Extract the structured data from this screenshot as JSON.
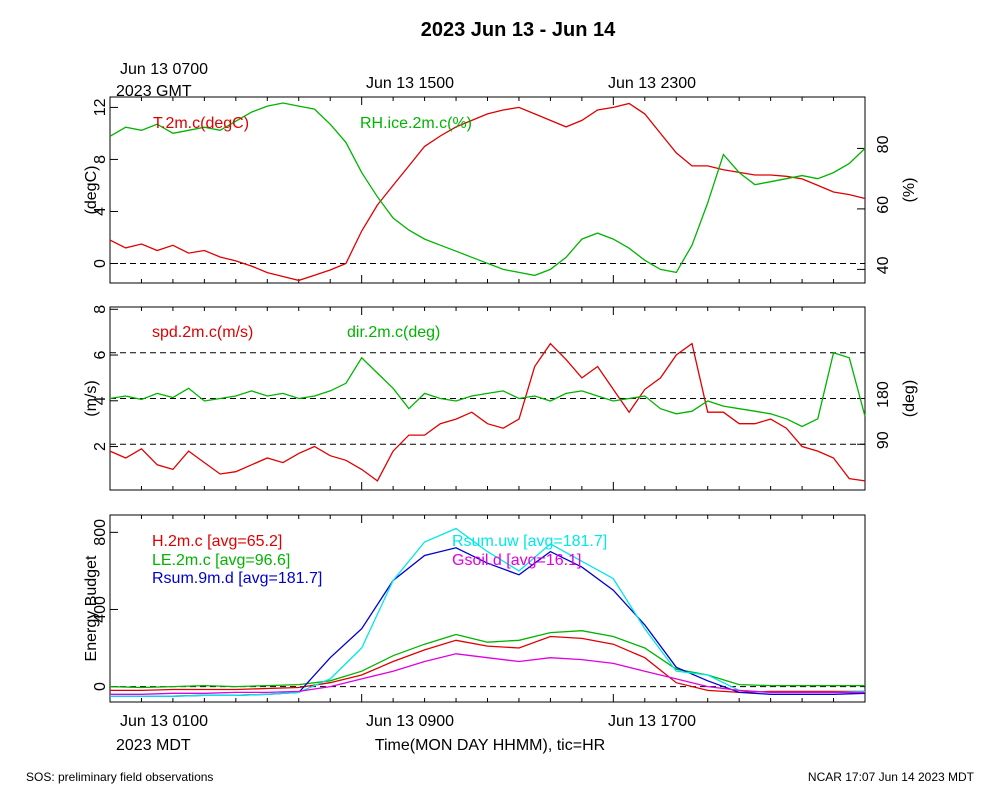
{
  "title": "2023 Jun 13 - Jun 14",
  "colors": {
    "red": "#e00000",
    "green": "#00b400",
    "blue": "#0000d0",
    "cyan": "#00e8e8",
    "magenta": "#e000e0",
    "black": "#000000"
  },
  "top_axis": {
    "first_label": [
      "Jun 13 0700",
      "2023 GMT"
    ],
    "labels": [
      "Jun 13 1500",
      "Jun 13 2300"
    ]
  },
  "bottom_axis": {
    "first_label": [
      "Jun 13 0100",
      "2023 MDT"
    ],
    "labels": [
      "Jun 13 0900",
      "Jun 13 1700"
    ],
    "title": "Time(MON DAY HHMM), tic=HR"
  },
  "footer": {
    "left": "SOS: preliminary field observations",
    "right": "NCAR 17:07 Jun 14 2023 MDT"
  },
  "chart_data": [
    {
      "type": "line",
      "x_range_hours": [
        0,
        24
      ],
      "left_axis": {
        "label": "(degC)",
        "range": [
          -1.5,
          12.8
        ],
        "ticks": [
          0,
          4,
          8,
          12
        ],
        "ref_lines": [
          0
        ]
      },
      "right_axis": {
        "label": "(%)",
        "range": [
          35.5,
          97
        ],
        "ticks": [
          40,
          60,
          80
        ]
      },
      "series": [
        {
          "name": "T.2m.c(degC)",
          "legend": "T.2m.c(degC)",
          "color": "red",
          "axis": "left",
          "x": [
            0,
            0.5,
            1,
            1.5,
            2,
            2.5,
            3,
            3.5,
            4,
            4.5,
            5,
            5.5,
            6,
            6.5,
            7,
            7.5,
            8,
            8.5,
            9,
            9.5,
            10,
            10.5,
            11,
            11.5,
            12,
            12.5,
            13,
            13.5,
            14,
            14.5,
            15,
            15.5,
            16,
            16.5,
            17,
            17.5,
            18,
            18.5,
            19,
            19.5,
            20,
            20.5,
            21,
            21.5,
            22,
            22.5,
            23,
            23.5,
            24
          ],
          "y": [
            1.8,
            1.2,
            1.5,
            1.0,
            1.4,
            0.8,
            1.0,
            0.5,
            0.2,
            -0.2,
            -0.7,
            -1.0,
            -1.3,
            -0.9,
            -0.5,
            0.0,
            2.5,
            4.5,
            6.0,
            7.5,
            9.0,
            9.8,
            10.5,
            11.0,
            11.5,
            11.8,
            12.0,
            11.5,
            11.0,
            10.5,
            11.0,
            11.8,
            12.0,
            12.3,
            11.5,
            10.0,
            8.5,
            7.5,
            7.5,
            7.2,
            7.0,
            6.8,
            6.8,
            6.7,
            6.5,
            6.0,
            5.5,
            5.3,
            5.0
          ]
        },
        {
          "name": "RH.ice.2m.c(%)",
          "legend": "RH.ice.2m.c(%)",
          "color": "green",
          "axis": "right",
          "x": [
            0,
            0.5,
            1,
            1.5,
            2,
            2.5,
            3,
            3.5,
            4,
            4.5,
            5,
            5.5,
            6,
            6.5,
            7,
            7.5,
            8,
            8.5,
            9,
            9.5,
            10,
            10.5,
            11,
            11.5,
            12,
            12.5,
            13,
            13.5,
            14,
            14.5,
            15,
            15.5,
            16,
            16.5,
            17,
            17.5,
            18,
            18.5,
            19,
            19.5,
            20,
            20.5,
            21,
            21.5,
            22,
            22.5,
            23,
            23.5,
            24
          ],
          "y": [
            84,
            87,
            86,
            88,
            85,
            86,
            87,
            86,
            89,
            92,
            94,
            95,
            94,
            93,
            88,
            82,
            72,
            64,
            57,
            53,
            50,
            48,
            46,
            44,
            42,
            40,
            39,
            38,
            40,
            44,
            50,
            52,
            50,
            47,
            43,
            40,
            39,
            48,
            62,
            78,
            72,
            68,
            69,
            70,
            71,
            70,
            72,
            75,
            80
          ]
        }
      ]
    },
    {
      "type": "line",
      "x_range_hours": [
        0,
        24
      ],
      "left_axis": {
        "label": "(m/s)",
        "range": [
          0.1,
          8.1
        ],
        "ticks": [
          2,
          4,
          6,
          8
        ]
      },
      "right_axis": {
        "label": "(deg)",
        "range": [
          0,
          360
        ],
        "ticks": [
          90,
          180
        ]
      },
      "ref_lines_right": [
        90,
        180,
        270
      ],
      "series": [
        {
          "name": "spd.2m.c(m/s)",
          "legend": "spd.2m.c(m/s)",
          "color": "red",
          "axis": "left",
          "x": [
            0,
            0.5,
            1,
            1.5,
            2,
            2.5,
            3,
            3.5,
            4,
            4.5,
            5,
            5.5,
            6,
            6.5,
            7,
            7.5,
            8,
            8.5,
            9,
            9.5,
            10,
            10.5,
            11,
            11.5,
            12,
            12.5,
            13,
            13.5,
            14,
            14.5,
            15,
            15.5,
            16,
            16.5,
            17,
            17.5,
            18,
            18.5,
            19,
            19.5,
            20,
            20.5,
            21,
            21.5,
            22,
            22.5,
            23,
            23.5,
            24
          ],
          "y": [
            1.8,
            1.5,
            1.9,
            1.2,
            1.0,
            1.8,
            1.3,
            0.8,
            0.9,
            1.2,
            1.5,
            1.3,
            1.7,
            2.0,
            1.6,
            1.4,
            1.0,
            0.5,
            1.8,
            2.5,
            2.5,
            3.0,
            3.2,
            3.5,
            3.0,
            2.8,
            3.2,
            5.5,
            6.5,
            5.8,
            5.0,
            5.5,
            4.5,
            3.5,
            4.5,
            5.0,
            6.0,
            6.5,
            3.5,
            3.5,
            3.0,
            3.0,
            3.2,
            2.8,
            2.0,
            1.8,
            1.5,
            0.6,
            0.5
          ]
        },
        {
          "name": "dir.2m.c(deg)",
          "legend": "dir.2m.c(deg)",
          "color": "green",
          "axis": "right",
          "x": [
            0,
            0.5,
            1,
            1.5,
            2,
            2.5,
            3,
            3.5,
            4,
            4.5,
            5,
            5.5,
            6,
            6.5,
            7,
            7.5,
            8,
            8.5,
            9,
            9.5,
            10,
            10.5,
            11,
            11.5,
            12,
            12.5,
            13,
            13.5,
            14,
            14.5,
            15,
            15.5,
            16,
            16.5,
            17,
            17.5,
            18,
            18.5,
            19,
            19.5,
            20,
            20.5,
            21,
            21.5,
            22,
            22.5,
            23,
            23.5,
            24
          ],
          "y": [
            180,
            185,
            178,
            190,
            182,
            200,
            175,
            180,
            185,
            195,
            185,
            190,
            180,
            185,
            195,
            210,
            260,
            230,
            200,
            160,
            190,
            180,
            175,
            185,
            190,
            195,
            180,
            185,
            175,
            190,
            195,
            185,
            175,
            180,
            185,
            160,
            150,
            155,
            175,
            165,
            160,
            155,
            150,
            140,
            125,
            140,
            270,
            260,
            145
          ]
        }
      ]
    },
    {
      "type": "line",
      "x_range_hours": [
        0,
        24
      ],
      "left_axis": {
        "label": "Energy Budget",
        "range": [
          -80,
          890
        ],
        "ticks": [
          0,
          400,
          800
        ],
        "ref_lines": [
          0
        ]
      },
      "series": [
        {
          "name": "H.2m.c",
          "legend": "H.2m.c [avg=65.2]",
          "color": "red",
          "x": [
            0,
            1,
            2,
            3,
            4,
            5,
            6,
            7,
            8,
            9,
            10,
            11,
            12,
            13,
            14,
            15,
            16,
            17,
            18,
            19,
            20,
            21,
            22,
            23,
            24
          ],
          "y": [
            -20,
            -20,
            -15,
            -15,
            -15,
            -10,
            -5,
            20,
            60,
            130,
            190,
            240,
            210,
            200,
            260,
            250,
            220,
            150,
            20,
            -20,
            -30,
            -25,
            -25,
            -25,
            -25
          ]
        },
        {
          "name": "LE.2m.c",
          "legend": "LE.2m.c [avg=96.6]",
          "color": "green",
          "x": [
            0,
            1,
            2,
            3,
            4,
            5,
            6,
            7,
            8,
            9,
            10,
            11,
            12,
            13,
            14,
            15,
            16,
            17,
            18,
            19,
            20,
            21,
            22,
            23,
            24
          ],
          "y": [
            0,
            -5,
            0,
            5,
            0,
            5,
            10,
            30,
            80,
            160,
            220,
            270,
            230,
            240,
            280,
            290,
            260,
            200,
            90,
            60,
            10,
            5,
            5,
            5,
            5
          ]
        },
        {
          "name": "Rsum.9m.d",
          "legend": "Rsum.9m.d [avg=181.7]",
          "color": "blue",
          "x": [
            0,
            1,
            2,
            3,
            4,
            5,
            6,
            7,
            8,
            9,
            10,
            11,
            12,
            13,
            14,
            15,
            16,
            17,
            18,
            19,
            20,
            21,
            22,
            23,
            24
          ],
          "y": [
            -50,
            -50,
            -50,
            -45,
            -45,
            -40,
            -30,
            150,
            300,
            550,
            680,
            720,
            640,
            580,
            700,
            620,
            500,
            320,
            100,
            30,
            -30,
            -40,
            -40,
            -40,
            -35
          ]
        },
        {
          "name": "Rsum.uw",
          "legend": "Rsum.uw [avg=181.7]",
          "color": "cyan",
          "x": [
            0,
            1,
            2,
            3,
            4,
            5,
            6,
            7,
            8,
            9,
            10,
            11,
            12,
            13,
            14,
            15,
            16,
            17,
            18,
            19,
            20,
            21,
            22,
            23,
            24
          ],
          "y": [
            -50,
            -50,
            -50,
            -45,
            -45,
            -40,
            -30,
            40,
            200,
            550,
            750,
            820,
            700,
            600,
            740,
            650,
            560,
            300,
            80,
            60,
            -20,
            -30,
            -30,
            -30,
            -25
          ]
        },
        {
          "name": "Gsoil.d",
          "legend": "Gsoil.d [avg=16.1]",
          "color": "magenta",
          "x": [
            0,
            1,
            2,
            3,
            4,
            5,
            6,
            7,
            8,
            9,
            10,
            11,
            12,
            13,
            14,
            15,
            16,
            17,
            18,
            19,
            20,
            21,
            22,
            23,
            24
          ],
          "y": [
            -40,
            -40,
            -35,
            -35,
            -30,
            -30,
            -25,
            0,
            40,
            80,
            130,
            170,
            150,
            130,
            150,
            140,
            120,
            80,
            40,
            0,
            -20,
            -30,
            -30,
            -30,
            -30
          ]
        }
      ]
    }
  ]
}
